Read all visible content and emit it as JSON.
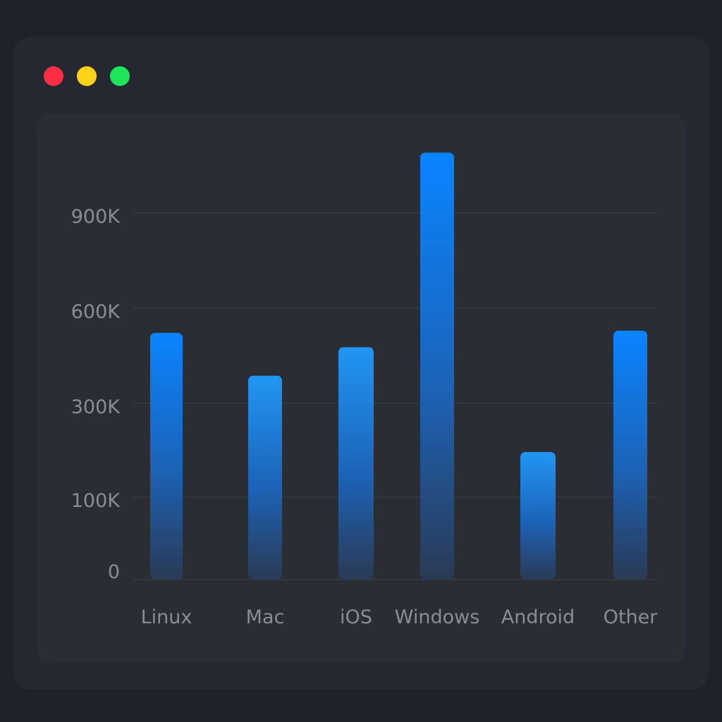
{
  "window": {
    "buttons": [
      {
        "name": "close",
        "color": "#ff2d44"
      },
      {
        "name": "minimize",
        "color": "#ffd21a"
      },
      {
        "name": "zoom",
        "color": "#1ee65a"
      }
    ]
  },
  "colors": {
    "bar_top_strong": "#0a84ff",
    "bar_top_light": "#2196f3",
    "bar_bottom": "#2a3a55",
    "grid": "#3f4248",
    "text": "#8a8d94"
  },
  "chart_data": {
    "type": "bar",
    "categories": [
      "Linux",
      "Mac",
      "iOS",
      "Windows",
      "Android",
      "Other"
    ],
    "values": [
      522000,
      387000,
      477000,
      1090000,
      196000,
      529000
    ],
    "yticks": [
      {
        "value": 0,
        "label": "0"
      },
      {
        "value": 100000,
        "label": "100K"
      },
      {
        "value": 300000,
        "label": "300K"
      },
      {
        "value": 600000,
        "label": "600K"
      },
      {
        "value": 900000,
        "label": "900K"
      }
    ],
    "ylim": [
      0,
      1100000
    ],
    "grid": true,
    "title": "",
    "xlabel": "",
    "ylabel": ""
  }
}
